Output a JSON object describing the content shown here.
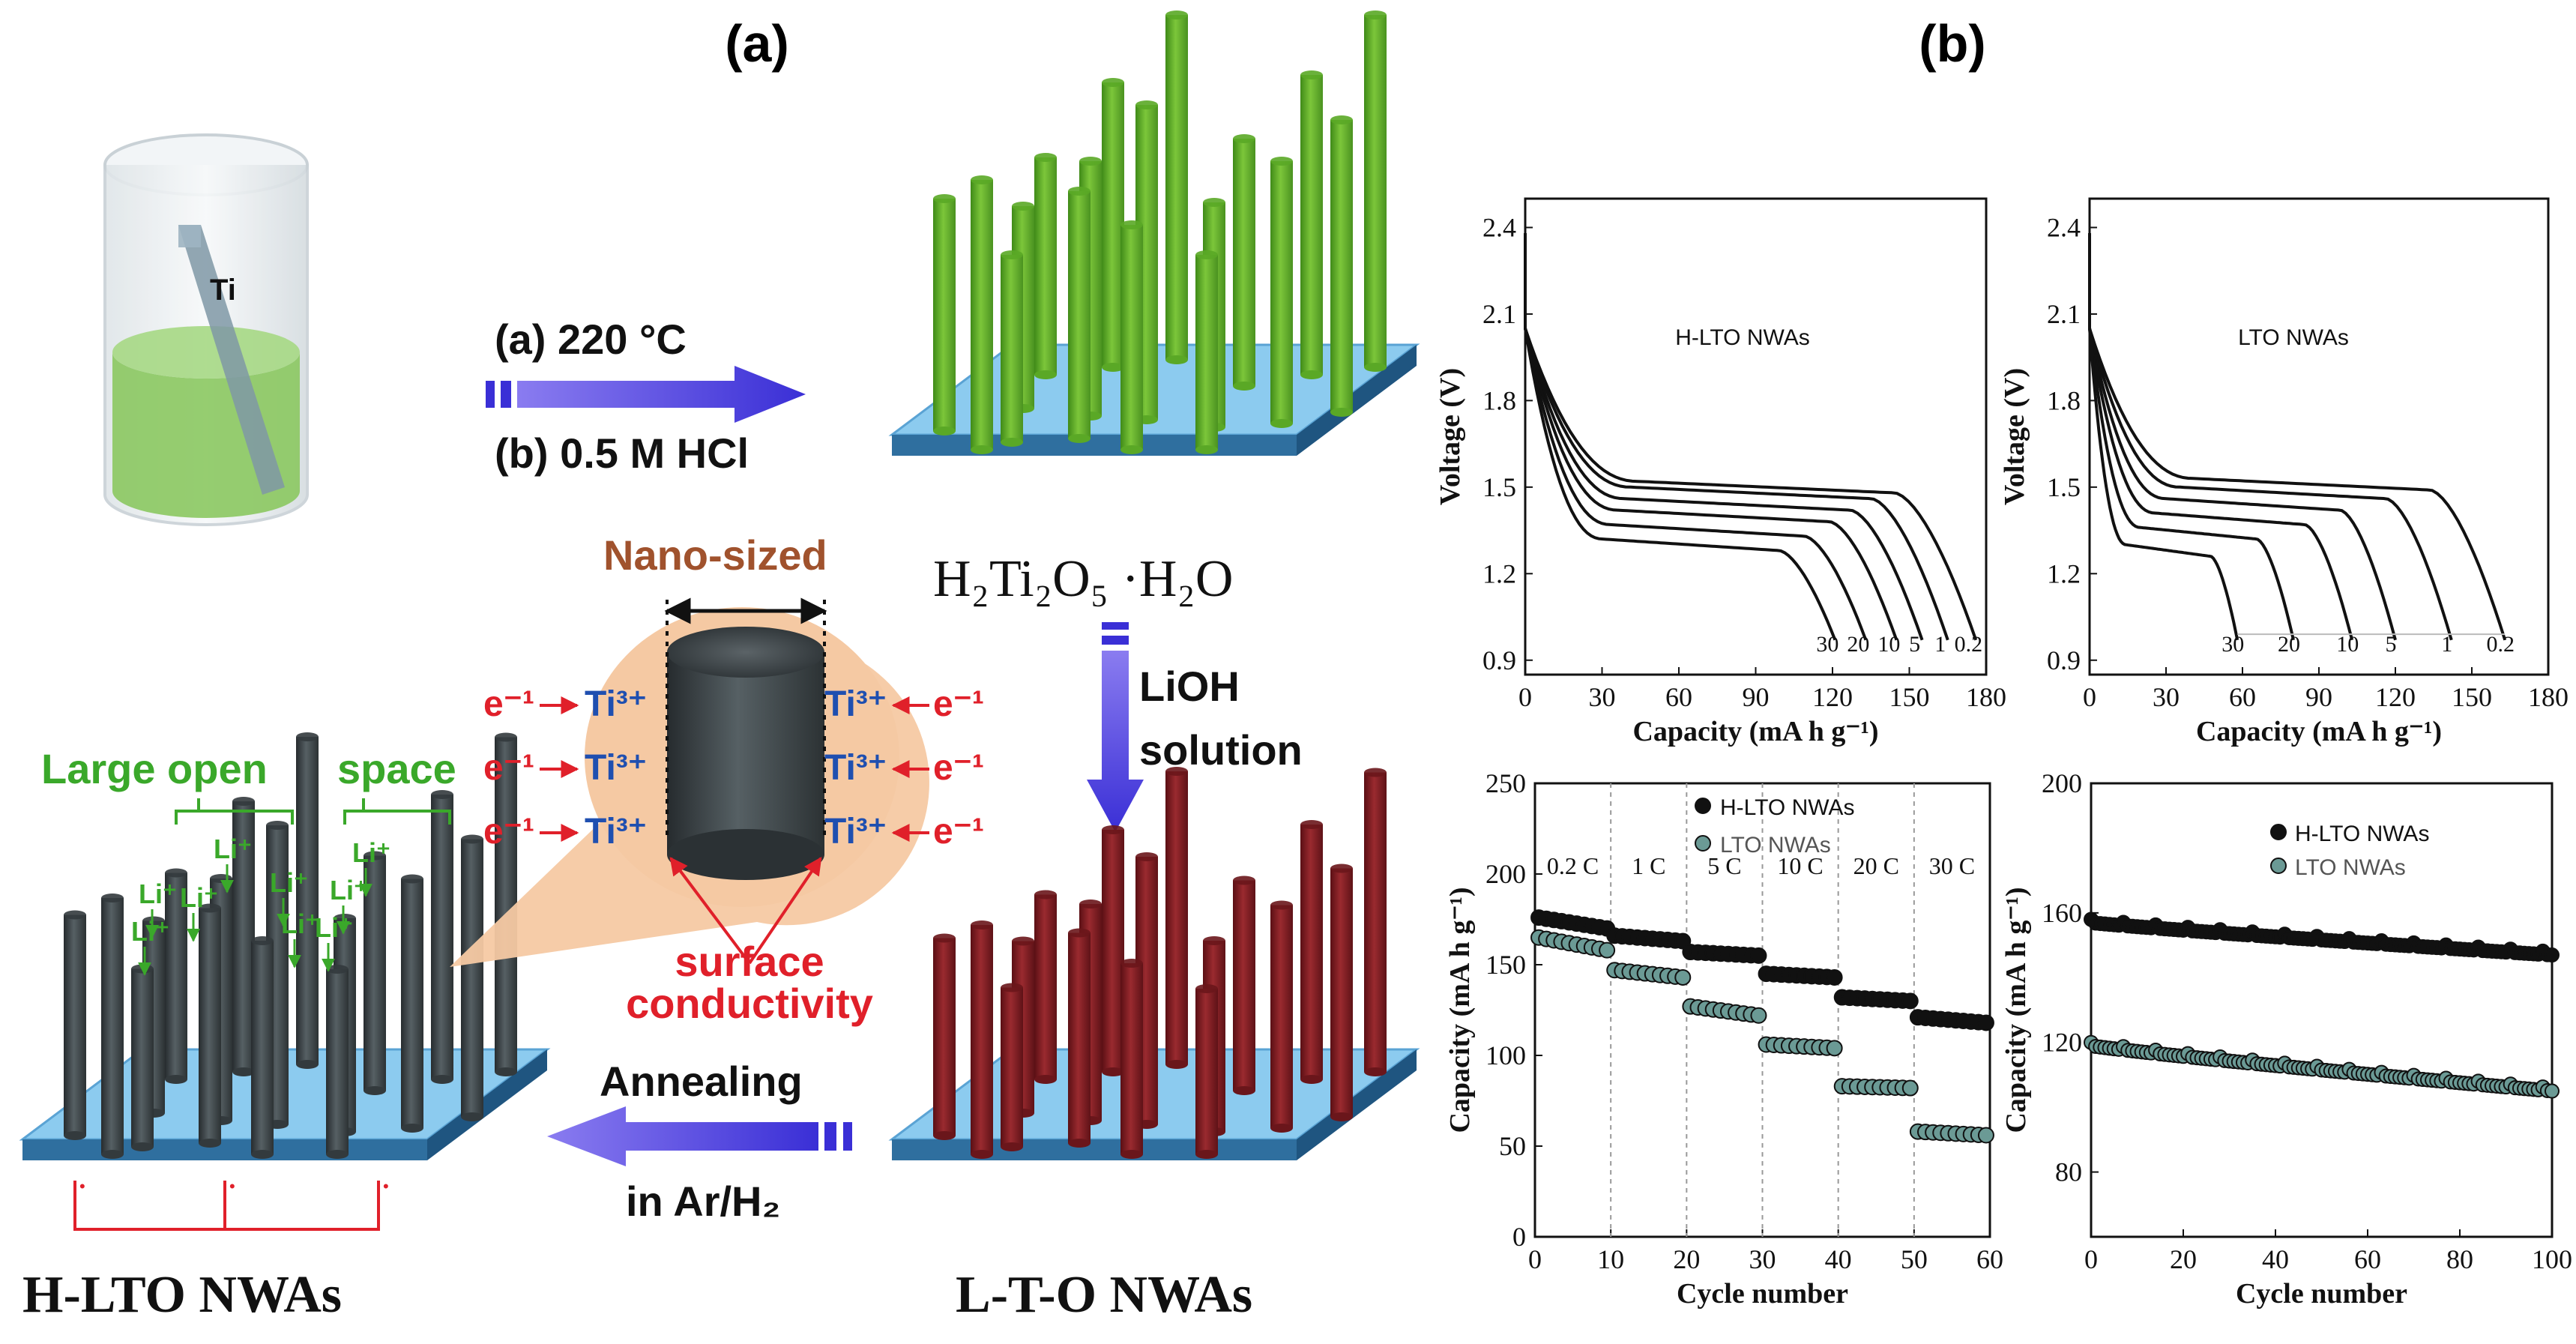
{
  "panel_a": {
    "label": "(a)",
    "ti_label": "Ti",
    "step1_line1": "(a) 220 °C",
    "step1_line2": "(b) 0.5 M HCl",
    "h2ti2o5": "H₂Ti₂O₅ ·H₂O",
    "lioh_line1": "LiOH",
    "lioh_line2": "solution",
    "nano_sized": "Nano-sized",
    "e_minus": "e⁻¹",
    "ti3plus": "Ti³⁺",
    "surface_line1": "surface",
    "surface_line2": "conductivity",
    "large_open": "Large open",
    "space": "space",
    "li_plus": "Li⁺",
    "annealing_line1": "Annealing",
    "annealing_line2": "in Ar/H₂",
    "hlto_label": "H-LTO NWAs",
    "lto_label": "L-T-O NWAs"
  },
  "panel_b": {
    "label": "(b)"
  },
  "colors": {
    "green_rod": "#6bb52c",
    "red_rod": "#7d1a1f",
    "gray_rod": "#3d4447",
    "substrate": "#6bb3df",
    "arrow": "#4a3fe0",
    "orange_text": "#a0522d",
    "red_text": "#e0202a",
    "green_text": "#3aa82a",
    "blue_text": "#1f4fb0",
    "halo": "#f5c9a3"
  },
  "chart_data": [
    {
      "id": "hlto-discharge",
      "type": "line",
      "title": "H-LTO NWAs",
      "xlabel": "Capacity (mA h g⁻¹)",
      "ylabel": "Voltage (V)",
      "xlim": [
        0,
        180
      ],
      "ylim": [
        0.85,
        2.5
      ],
      "xticks": [
        0,
        30,
        60,
        90,
        120,
        150,
        180
      ],
      "yticks": [
        0.9,
        1.2,
        1.5,
        1.8,
        2.1,
        2.4
      ],
      "curve_labels": [
        "30",
        "20",
        "10",
        "5",
        "1",
        "0.2"
      ],
      "series": [
        {
          "name": "0.2 C",
          "plateau": 1.52,
          "capacity": 176
        },
        {
          "name": "1 C",
          "plateau": 1.5,
          "capacity": 165
        },
        {
          "name": "5 C",
          "plateau": 1.46,
          "capacity": 155
        },
        {
          "name": "10 C",
          "plateau": 1.42,
          "capacity": 145
        },
        {
          "name": "20 C",
          "plateau": 1.37,
          "capacity": 133
        },
        {
          "name": "30 C",
          "plateau": 1.32,
          "capacity": 121
        }
      ]
    },
    {
      "id": "lto-discharge",
      "type": "line",
      "title": "LTO NWAs",
      "xlabel": "Capacity (mA h g⁻¹)",
      "ylabel": "Voltage (V)",
      "xlim": [
        0,
        180
      ],
      "ylim": [
        0.85,
        2.5
      ],
      "xticks": [
        0,
        30,
        60,
        90,
        120,
        150,
        180
      ],
      "yticks": [
        0.9,
        1.2,
        1.5,
        1.8,
        2.1,
        2.4
      ],
      "curve_labels": [
        "30",
        "20",
        "10",
        "5",
        "1",
        "0.2"
      ],
      "series": [
        {
          "name": "0.2 C",
          "plateau": 1.53,
          "capacity": 163
        },
        {
          "name": "1 C",
          "plateau": 1.5,
          "capacity": 142
        },
        {
          "name": "5 C",
          "plateau": 1.46,
          "capacity": 120
        },
        {
          "name": "10 C",
          "plateau": 1.41,
          "capacity": 103
        },
        {
          "name": "20 C",
          "plateau": 1.36,
          "capacity": 80
        },
        {
          "name": "30 C",
          "plateau": 1.3,
          "capacity": 58
        }
      ]
    },
    {
      "id": "rate-capability",
      "type": "scatter",
      "xlabel": "Cycle number",
      "ylabel": "Capacity (mA h g⁻¹)",
      "xlim": [
        0,
        60
      ],
      "ylim": [
        0,
        250
      ],
      "xticks": [
        0,
        10,
        20,
        30,
        40,
        50,
        60
      ],
      "yticks": [
        0,
        50,
        100,
        150,
        200,
        250
      ],
      "rate_labels": [
        "0.2 C",
        "1 C",
        "5 C",
        "10 C",
        "20 C",
        "30 C"
      ],
      "series": [
        {
          "name": "H-LTO NWAs",
          "segments": [
            [
              176,
              170
            ],
            [
              166,
              163
            ],
            [
              157,
              155
            ],
            [
              145,
              143
            ],
            [
              132,
              130
            ],
            [
              121,
              118
            ]
          ]
        },
        {
          "name": "LTO NWAs",
          "segments": [
            [
              165,
              158
            ],
            [
              147,
              143
            ],
            [
              127,
              122
            ],
            [
              106,
              104
            ],
            [
              83,
              82
            ],
            [
              58,
              56
            ]
          ]
        }
      ]
    },
    {
      "id": "cycling",
      "type": "scatter",
      "xlabel": "Cycle number",
      "ylabel": "Capacity (mA h g⁻¹)",
      "xlim": [
        0,
        100
      ],
      "ylim": [
        60,
        200
      ],
      "xticks": [
        0,
        20,
        40,
        60,
        80,
        100
      ],
      "yticks": [
        80,
        120,
        160,
        200
      ],
      "series": [
        {
          "name": "H-LTO NWAs",
          "start": 157,
          "end": 147
        },
        {
          "name": "LTO NWAs",
          "start": 119,
          "end": 105
        }
      ]
    }
  ]
}
